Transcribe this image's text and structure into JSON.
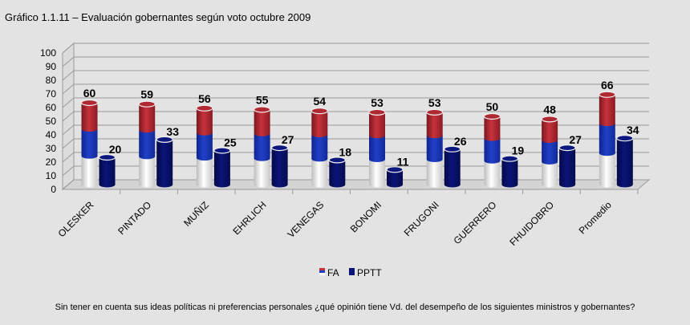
{
  "title": "Gráfico 1.1.11 – Evaluación gobernantes según voto octubre 2009",
  "footnote": "Sin tener en cuenta sus ideas políticas ni preferencias personales ¿qué opinión tiene Vd. del desempeño de los siguientes ministros y gobernantes?",
  "colors": {
    "fa_top": "#c8323c",
    "fa_mid": "#2040c8",
    "fa_bottom": "#ffffff",
    "pptt": "#0a1478",
    "background": "#e3e3e3"
  },
  "chart_data": {
    "type": "bar",
    "categories": [
      "OLESKER",
      "PINTADO",
      "MUÑIZ",
      "EHRLICH",
      "VENEGAS",
      "BONOMI",
      "FRUGONI",
      "GUERRERO",
      "FHUIDOBRO",
      "Promedio"
    ],
    "series": [
      {
        "name": "FA",
        "values": [
          60,
          59,
          56,
          55,
          54,
          53,
          53,
          50,
          48,
          66
        ]
      },
      {
        "name": "PPTT",
        "values": [
          20,
          33,
          25,
          27,
          18,
          11,
          26,
          19,
          27,
          34
        ]
      }
    ],
    "ylim": [
      0,
      100
    ],
    "yticks": [
      0,
      10,
      20,
      30,
      40,
      50,
      60,
      70,
      80,
      90,
      100
    ],
    "grid": true,
    "legend": "bottom",
    "xlabel": "",
    "ylabel": ""
  }
}
